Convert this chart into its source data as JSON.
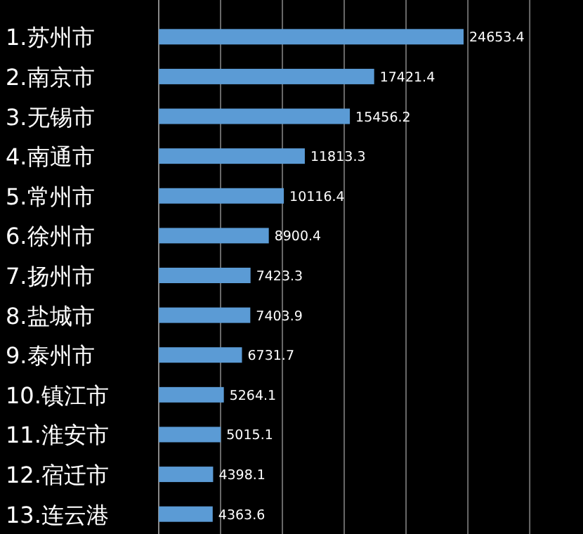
{
  "chart_data": {
    "type": "bar",
    "orientation": "horizontal",
    "categories": [
      "1.苏州市",
      "2.南京市",
      "3.无锡市",
      "4.南通市",
      "5.常州市",
      "6.徐州市",
      "7.扬州市",
      "8.盐城市",
      "9.泰州市",
      "10.镇江市",
      "11.淮安市",
      "12.宿迁市",
      "13.连云港"
    ],
    "values": [
      24653.4,
      17421.4,
      15456.2,
      11813.3,
      10116.4,
      8900.4,
      7423.3,
      7403.9,
      6731.7,
      5264.1,
      5015.1,
      4398.1,
      4363.6
    ],
    "color": "#5b9bd5",
    "data_labels": true,
    "grid": "x",
    "xticks": [
      {
        "value": 5000,
        "label": null
      },
      {
        "value": 10000,
        "label": null
      },
      {
        "value": 15000,
        "label": null
      },
      {
        "value": 20000,
        "label": null
      },
      {
        "value": 25000,
        "label": null
      },
      {
        "value": 30000,
        "label": null
      }
    ],
    "tick_labels": "y"
  }
}
